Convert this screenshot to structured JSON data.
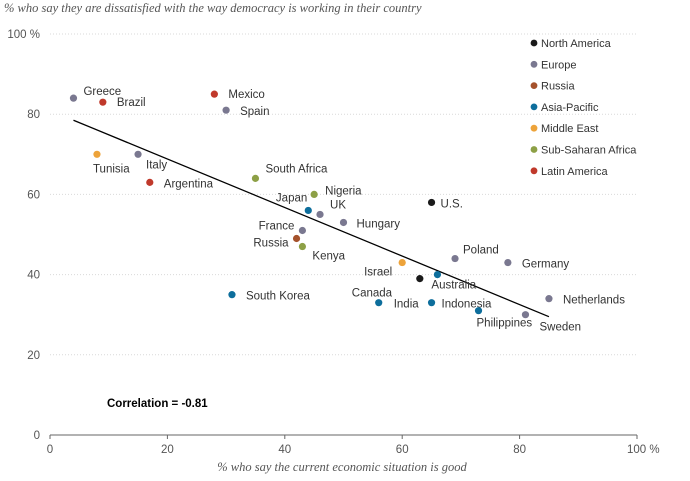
{
  "chart_data": {
    "type": "scatter",
    "title": "% who say they are dissatisfied with the way democracy is working in their country",
    "xlabel": "% who say the current economic situation is good",
    "xlim": [
      0,
      100
    ],
    "ylim": [
      0,
      100
    ],
    "x_ticks": [
      0,
      20,
      40,
      60,
      80,
      100
    ],
    "y_ticks": [
      0,
      20,
      40,
      60,
      80,
      100
    ],
    "x_tick_labels": [
      "0",
      "20",
      "40",
      "60",
      "80",
      "100 %"
    ],
    "y_tick_labels": [
      "0",
      "20",
      "40",
      "60",
      "80",
      "100 %"
    ],
    "correlation_label": "Correlation = -0.81",
    "trendline": {
      "x": [
        4,
        85
      ],
      "y": [
        78.5,
        29.5
      ]
    },
    "regions": [
      {
        "name": "North America",
        "color": "#1a1a1a"
      },
      {
        "name": "Europe",
        "color": "#7a7890"
      },
      {
        "name": "Russia",
        "color": "#a5522c"
      },
      {
        "name": "Asia-Pacific",
        "color": "#0d6e9c"
      },
      {
        "name": "Middle East",
        "color": "#eda33a"
      },
      {
        "name": "Sub-Saharan Africa",
        "color": "#8da046"
      },
      {
        "name": "Latin America",
        "color": "#c0392b"
      }
    ],
    "points": [
      {
        "label": "Greece",
        "region": "Europe",
        "x": 4,
        "y": 84
      },
      {
        "label": "Brazil",
        "region": "Latin America",
        "x": 9,
        "y": 83
      },
      {
        "label": "Mexico",
        "region": "Latin America",
        "x": 28,
        "y": 85
      },
      {
        "label": "Spain",
        "region": "Europe",
        "x": 30,
        "y": 81
      },
      {
        "label": "Tunisia",
        "region": "Middle East",
        "x": 8,
        "y": 70
      },
      {
        "label": "Italy",
        "region": "Europe",
        "x": 15,
        "y": 70
      },
      {
        "label": "Argentina",
        "region": "Latin America",
        "x": 17,
        "y": 63
      },
      {
        "label": "South Africa",
        "region": "Sub-Saharan Africa",
        "x": 35,
        "y": 64
      },
      {
        "label": "Nigeria",
        "region": "Sub-Saharan Africa",
        "x": 45,
        "y": 60
      },
      {
        "label": "Japan",
        "region": "Asia-Pacific",
        "x": 44,
        "y": 56
      },
      {
        "label": "UK",
        "region": "Europe",
        "x": 46,
        "y": 55
      },
      {
        "label": "U.S.",
        "region": "North America",
        "x": 65,
        "y": 58
      },
      {
        "label": "Hungary",
        "region": "Europe",
        "x": 50,
        "y": 53
      },
      {
        "label": "France",
        "region": "Europe",
        "x": 43,
        "y": 51
      },
      {
        "label": "Russia",
        "region": "Russia",
        "x": 42,
        "y": 49
      },
      {
        "label": "Kenya",
        "region": "Sub-Saharan Africa",
        "x": 43,
        "y": 47
      },
      {
        "label": "Poland",
        "region": "Europe",
        "x": 69,
        "y": 44
      },
      {
        "label": "Germany",
        "region": "Europe",
        "x": 78,
        "y": 43
      },
      {
        "label": "Israel",
        "region": "Middle East",
        "x": 60,
        "y": 43
      },
      {
        "label": "Australia",
        "region": "Asia-Pacific",
        "x": 66,
        "y": 40
      },
      {
        "label": "Canada",
        "region": "North America",
        "x": 63,
        "y": 39
      },
      {
        "label": "South Korea",
        "region": "Asia-Pacific",
        "x": 31,
        "y": 35
      },
      {
        "label": "India",
        "region": "Asia-Pacific",
        "x": 56,
        "y": 33
      },
      {
        "label": "Indonesia",
        "region": "Asia-Pacific",
        "x": 65,
        "y": 33
      },
      {
        "label": "Netherlands",
        "region": "Europe",
        "x": 85,
        "y": 34
      },
      {
        "label": "Philippines",
        "region": "Asia-Pacific",
        "x": 73,
        "y": 31
      },
      {
        "label": "Sweden",
        "region": "Europe",
        "x": 81,
        "y": 30
      }
    ]
  }
}
